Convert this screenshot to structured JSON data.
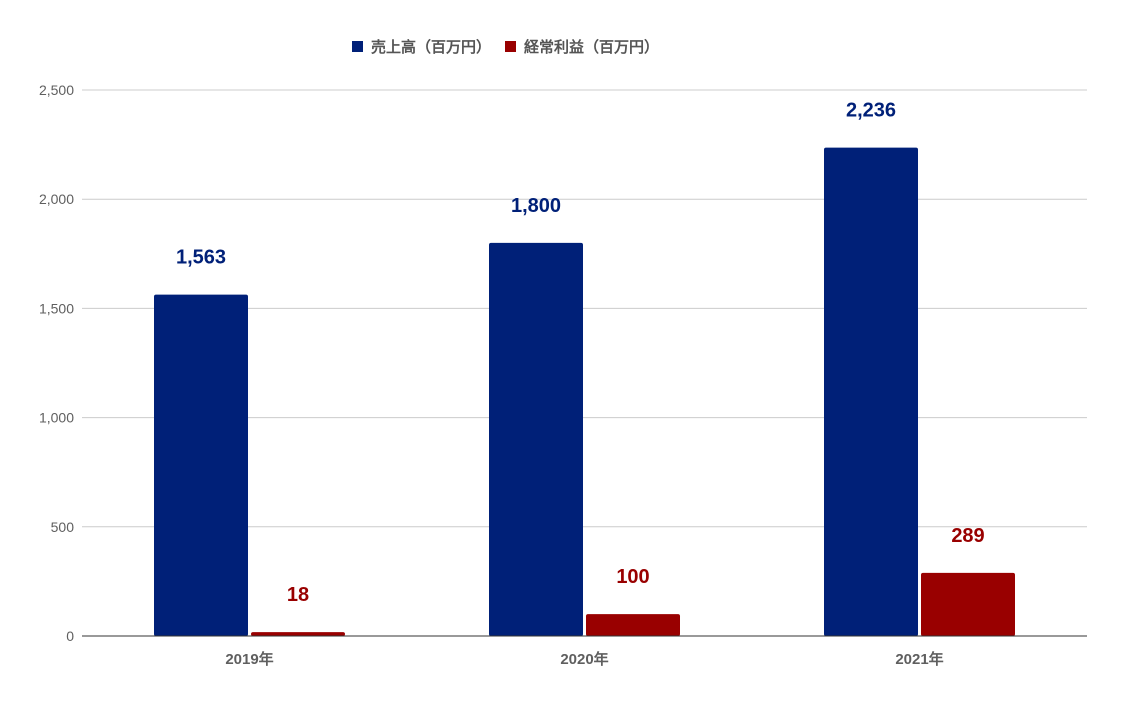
{
  "chart_data": {
    "type": "bar",
    "categories": [
      "2019年",
      "2020年",
      "2021年"
    ],
    "series": [
      {
        "name": "売上高（百万円）",
        "values": [
          1563,
          1800,
          2236
        ],
        "color": "#002078",
        "labels": [
          "1,563",
          "1,800",
          "2,236"
        ]
      },
      {
        "name": "経常利益（百万円）",
        "values": [
          18,
          100,
          289
        ],
        "color": "#990000",
        "labels": [
          "18",
          "100",
          "289"
        ]
      }
    ],
    "ylim": [
      0,
      2500
    ],
    "yticks": [
      0,
      500,
      1000,
      1500,
      2000,
      2500
    ],
    "ytick_labels": [
      "0",
      "500",
      "1,000",
      "1,500",
      "2,000",
      "2,500"
    ],
    "grid": true,
    "legend_position": "top-center"
  }
}
